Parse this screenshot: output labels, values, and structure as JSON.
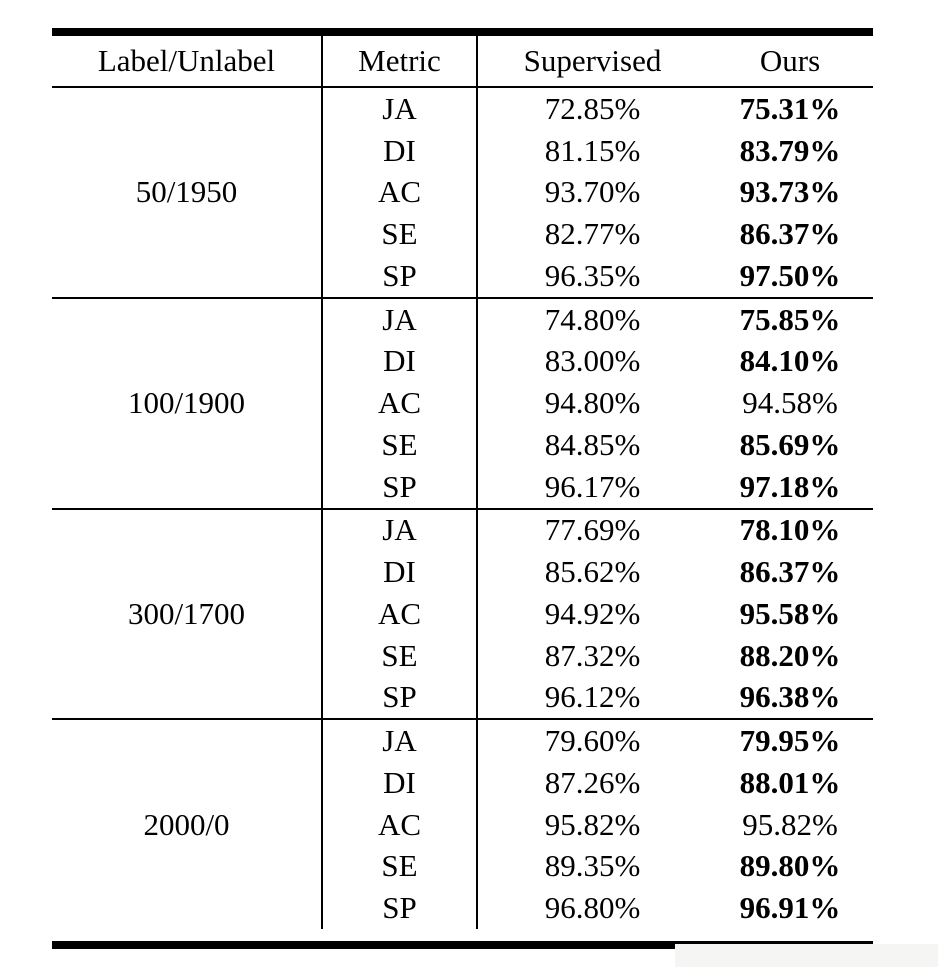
{
  "page": {
    "background": "#ffffff",
    "text_color": "#000000",
    "rule_color": "#000000"
  },
  "table": {
    "headers": [
      "Label/Unlabel",
      "Metric",
      "Supervised",
      "Ours"
    ],
    "groups": [
      {
        "label": "50/1950",
        "rows": [
          {
            "metric": "JA",
            "supervised": "72.85%",
            "ours": "75.31%",
            "ours_bold": "true"
          },
          {
            "metric": "DI",
            "supervised": "81.15%",
            "ours": "83.79%",
            "ours_bold": "true"
          },
          {
            "metric": "AC",
            "supervised": "93.70%",
            "ours": "93.73%",
            "ours_bold": "true"
          },
          {
            "metric": "SE",
            "supervised": "82.77%",
            "ours": "86.37%",
            "ours_bold": "true"
          },
          {
            "metric": "SP",
            "supervised": "96.35%",
            "ours": "97.50%",
            "ours_bold": "true"
          }
        ]
      },
      {
        "label": "100/1900",
        "rows": [
          {
            "metric": "JA",
            "supervised": "74.80%",
            "ours": "75.85%",
            "ours_bold": "true"
          },
          {
            "metric": "DI",
            "supervised": "83.00%",
            "ours": "84.10%",
            "ours_bold": "true"
          },
          {
            "metric": "AC",
            "supervised": "94.80%",
            "ours": "94.58%",
            "ours_bold": "false"
          },
          {
            "metric": "SE",
            "supervised": "84.85%",
            "ours": "85.69%",
            "ours_bold": "true"
          },
          {
            "metric": "SP",
            "supervised": "96.17%",
            "ours": "97.18%",
            "ours_bold": "true"
          }
        ]
      },
      {
        "label": "300/1700",
        "rows": [
          {
            "metric": "JA",
            "supervised": "77.69%",
            "ours": "78.10%",
            "ours_bold": "true"
          },
          {
            "metric": "DI",
            "supervised": "85.62%",
            "ours": "86.37%",
            "ours_bold": "true"
          },
          {
            "metric": "AC",
            "supervised": "94.92%",
            "ours": "95.58%",
            "ours_bold": "true"
          },
          {
            "metric": "SE",
            "supervised": "87.32%",
            "ours": "88.20%",
            "ours_bold": "true"
          },
          {
            "metric": "SP",
            "supervised": "96.12%",
            "ours": "96.38%",
            "ours_bold": "true"
          }
        ]
      },
      {
        "label": "2000/0",
        "rows": [
          {
            "metric": "JA",
            "supervised": "79.60%",
            "ours": "79.95%",
            "ours_bold": "true"
          },
          {
            "metric": "DI",
            "supervised": "87.26%",
            "ours": "88.01%",
            "ours_bold": "true"
          },
          {
            "metric": "AC",
            "supervised": "95.82%",
            "ours": "95.82%",
            "ours_bold": "false"
          },
          {
            "metric": "SE",
            "supervised": "89.35%",
            "ours": "89.80%",
            "ours_bold": "true"
          },
          {
            "metric": "SP",
            "supervised": "96.80%",
            "ours": "96.91%",
            "ours_bold": "true"
          }
        ]
      }
    ]
  }
}
